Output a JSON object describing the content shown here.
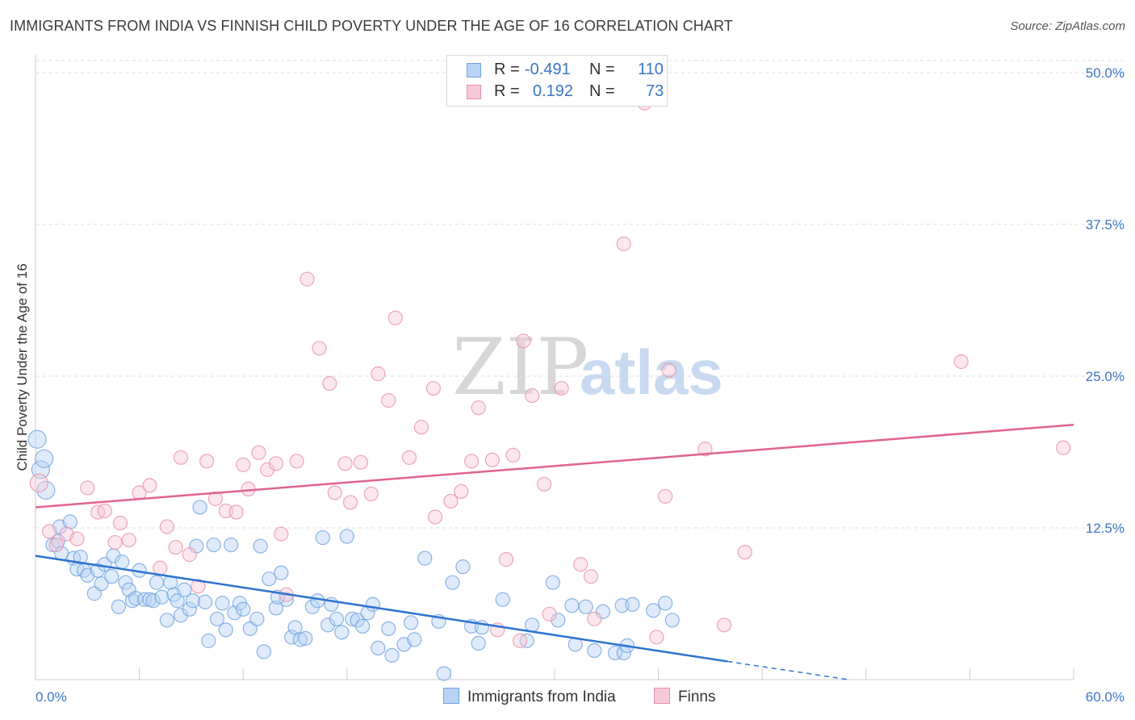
{
  "title": "IMMIGRANTS FROM INDIA VS FINNISH CHILD POVERTY UNDER THE AGE OF 16 CORRELATION CHART",
  "source": "Source: ZipAtlas.com",
  "watermark": {
    "zip": "ZIP",
    "atlas": "atlas"
  },
  "legend": {
    "rows": [
      {
        "r_label": "R =",
        "r_value": "-0.491",
        "n_label": "N =",
        "n_value": "110",
        "color": "#6fa3e0",
        "fill": "#b9d3f3"
      },
      {
        "r_label": "R =",
        "r_value": "0.192",
        "n_label": "N =",
        "n_value": "73",
        "color": "#e891ad",
        "fill": "#f7c9d8"
      }
    ]
  },
  "bottom_legend": [
    {
      "label": "Immigrants from India",
      "color": "#6fa3e0",
      "fill": "#b9d3f3"
    },
    {
      "label": "Finns",
      "color": "#e891ad",
      "fill": "#f7c9d8"
    }
  ],
  "chart_data": {
    "type": "scatter",
    "title": "IMMIGRANTS FROM INDIA VS FINNISH CHILD POVERTY UNDER THE AGE OF 16 CORRELATION CHART",
    "xlabel": "",
    "ylabel": "Child Poverty Under the Age of 16",
    "xlim": [
      0,
      60
    ],
    "ylim": [
      0,
      52
    ],
    "x_tick_labels": [
      "0.0%",
      "60.0%"
    ],
    "y_ticks": [
      12.5,
      25.0,
      37.5,
      50.0
    ],
    "y_tick_labels": [
      "12.5%",
      "25.0%",
      "37.5%",
      "50.0%"
    ],
    "grid": true,
    "legend_position": "top-center",
    "series": [
      {
        "name": "Immigrants from India",
        "color": "#6fa3e0",
        "fill": "#b9d3f3",
        "trend": {
          "x0": 0,
          "y0": 10.2,
          "x1": 40,
          "y1": 1.5,
          "dash_to_x": 47,
          "dash_to_y": 0
        },
        "points": [
          [
            0.1,
            19.8
          ],
          [
            0.3,
            17.3
          ],
          [
            0.5,
            18.2
          ],
          [
            0.6,
            15.6
          ],
          [
            1.0,
            11.1
          ],
          [
            1.3,
            11.4
          ],
          [
            1.4,
            12.6
          ],
          [
            1.5,
            10.4
          ],
          [
            2.0,
            13.0
          ],
          [
            2.2,
            10.0
          ],
          [
            2.4,
            9.1
          ],
          [
            2.6,
            10.1
          ],
          [
            2.8,
            9.0
          ],
          [
            3.0,
            8.6
          ],
          [
            3.4,
            7.1
          ],
          [
            3.6,
            9.0
          ],
          [
            3.8,
            7.9
          ],
          [
            4.0,
            9.5
          ],
          [
            4.4,
            8.5
          ],
          [
            4.5,
            10.2
          ],
          [
            4.8,
            6.0
          ],
          [
            5.0,
            9.7
          ],
          [
            5.2,
            8.0
          ],
          [
            5.4,
            7.4
          ],
          [
            5.6,
            6.5
          ],
          [
            5.8,
            6.7
          ],
          [
            6.0,
            9.0
          ],
          [
            6.3,
            6.6
          ],
          [
            6.6,
            6.6
          ],
          [
            6.8,
            6.5
          ],
          [
            7.0,
            8.0
          ],
          [
            7.3,
            6.8
          ],
          [
            7.6,
            4.9
          ],
          [
            7.8,
            8.0
          ],
          [
            8.0,
            7.0
          ],
          [
            8.2,
            6.5
          ],
          [
            8.4,
            5.3
          ],
          [
            8.6,
            7.4
          ],
          [
            8.9,
            5.8
          ],
          [
            9.1,
            6.5
          ],
          [
            9.3,
            11.0
          ],
          [
            9.5,
            14.2
          ],
          [
            9.8,
            6.4
          ],
          [
            10.0,
            3.2
          ],
          [
            10.3,
            11.1
          ],
          [
            10.5,
            5.0
          ],
          [
            10.8,
            6.3
          ],
          [
            11.0,
            4.1
          ],
          [
            11.3,
            11.1
          ],
          [
            11.5,
            5.5
          ],
          [
            11.8,
            6.3
          ],
          [
            12.0,
            5.8
          ],
          [
            12.4,
            4.2
          ],
          [
            12.8,
            5.0
          ],
          [
            13.0,
            11.0
          ],
          [
            13.2,
            2.3
          ],
          [
            13.5,
            8.3
          ],
          [
            13.9,
            5.9
          ],
          [
            14.2,
            8.8
          ],
          [
            14.5,
            6.6
          ],
          [
            14.8,
            3.5
          ],
          [
            15.0,
            4.3
          ],
          [
            15.3,
            3.3
          ],
          [
            15.6,
            3.4
          ],
          [
            16.0,
            6.0
          ],
          [
            16.3,
            6.5
          ],
          [
            16.6,
            11.7
          ],
          [
            16.9,
            4.5
          ],
          [
            17.1,
            6.2
          ],
          [
            17.4,
            5.0
          ],
          [
            17.7,
            3.9
          ],
          [
            18.0,
            11.8
          ],
          [
            18.3,
            5.0
          ],
          [
            18.6,
            4.9
          ],
          [
            18.9,
            4.4
          ],
          [
            19.2,
            5.5
          ],
          [
            19.5,
            6.2
          ],
          [
            19.8,
            2.6
          ],
          [
            20.4,
            4.2
          ],
          [
            20.6,
            2.0
          ],
          [
            21.3,
            2.9
          ],
          [
            21.7,
            4.7
          ],
          [
            21.9,
            3.3
          ],
          [
            22.5,
            10.0
          ],
          [
            23.3,
            4.8
          ],
          [
            23.6,
            0.5
          ],
          [
            24.1,
            8.0
          ],
          [
            24.7,
            9.3
          ],
          [
            25.2,
            4.4
          ],
          [
            25.6,
            3.0
          ],
          [
            25.8,
            4.3
          ],
          [
            27.0,
            6.6
          ],
          [
            28.7,
            4.5
          ],
          [
            29.9,
            8.0
          ],
          [
            30.2,
            4.9
          ],
          [
            31.0,
            6.1
          ],
          [
            31.2,
            2.9
          ],
          [
            31.8,
            6.0
          ],
          [
            32.3,
            2.4
          ],
          [
            33.5,
            2.2
          ],
          [
            33.9,
            6.1
          ],
          [
            34.0,
            2.2
          ],
          [
            34.2,
            2.8
          ],
          [
            34.5,
            6.2
          ],
          [
            35.7,
            5.7
          ],
          [
            36.4,
            6.3
          ],
          [
            36.8,
            4.9
          ],
          [
            32.8,
            5.6
          ],
          [
            28.4,
            3.2
          ],
          [
            14.0,
            6.8
          ]
        ]
      },
      {
        "name": "Finns",
        "color": "#e891ad",
        "fill": "#f7c9d8",
        "trend": {
          "x0": 0,
          "y0": 14.2,
          "x1": 60,
          "y1": 21.0
        },
        "points": [
          [
            0.2,
            16.2
          ],
          [
            0.8,
            12.2
          ],
          [
            1.2,
            11.1
          ],
          [
            1.8,
            12.0
          ],
          [
            2.4,
            11.6
          ],
          [
            3.0,
            15.8
          ],
          [
            3.6,
            13.8
          ],
          [
            4.0,
            13.9
          ],
          [
            4.6,
            11.3
          ],
          [
            4.9,
            12.9
          ],
          [
            5.4,
            11.5
          ],
          [
            6.0,
            15.4
          ],
          [
            6.6,
            16.0
          ],
          [
            7.2,
            9.2
          ],
          [
            7.6,
            12.6
          ],
          [
            8.1,
            10.9
          ],
          [
            8.4,
            18.3
          ],
          [
            8.9,
            10.3
          ],
          [
            9.4,
            7.7
          ],
          [
            9.9,
            18.0
          ],
          [
            10.4,
            14.9
          ],
          [
            11.0,
            13.9
          ],
          [
            11.6,
            13.8
          ],
          [
            12.0,
            17.7
          ],
          [
            12.3,
            15.7
          ],
          [
            12.9,
            18.7
          ],
          [
            13.4,
            17.3
          ],
          [
            13.9,
            17.8
          ],
          [
            14.2,
            12.0
          ],
          [
            14.5,
            7.0
          ],
          [
            15.1,
            18.0
          ],
          [
            15.7,
            33.0
          ],
          [
            16.4,
            27.3
          ],
          [
            17.0,
            24.4
          ],
          [
            17.3,
            15.4
          ],
          [
            17.9,
            17.8
          ],
          [
            18.2,
            14.6
          ],
          [
            18.8,
            17.9
          ],
          [
            19.4,
            15.3
          ],
          [
            19.8,
            25.2
          ],
          [
            20.4,
            23.0
          ],
          [
            20.8,
            29.8
          ],
          [
            21.6,
            18.3
          ],
          [
            22.3,
            20.8
          ],
          [
            23.0,
            24.0
          ],
          [
            23.1,
            13.4
          ],
          [
            24.0,
            14.7
          ],
          [
            24.6,
            15.5
          ],
          [
            25.2,
            18.0
          ],
          [
            25.6,
            22.4
          ],
          [
            26.4,
            18.1
          ],
          [
            26.7,
            4.1
          ],
          [
            27.2,
            9.9
          ],
          [
            27.6,
            18.5
          ],
          [
            28.0,
            3.2
          ],
          [
            28.2,
            27.9
          ],
          [
            28.7,
            23.4
          ],
          [
            29.4,
            16.1
          ],
          [
            29.7,
            5.4
          ],
          [
            30.4,
            24.0
          ],
          [
            31.5,
            9.5
          ],
          [
            32.1,
            8.5
          ],
          [
            32.3,
            5.0
          ],
          [
            34.0,
            35.9
          ],
          [
            35.2,
            47.5
          ],
          [
            35.9,
            3.5
          ],
          [
            36.4,
            15.1
          ],
          [
            36.6,
            25.5
          ],
          [
            38.7,
            19.0
          ],
          [
            39.8,
            4.5
          ],
          [
            41.0,
            10.5
          ],
          [
            53.5,
            26.2
          ],
          [
            59.4,
            19.1
          ]
        ]
      }
    ]
  }
}
